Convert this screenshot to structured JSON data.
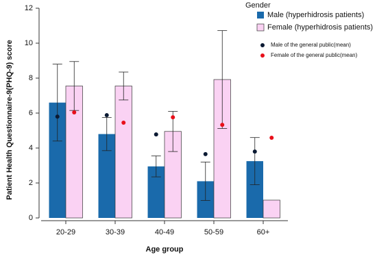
{
  "chart_data": {
    "type": "bar",
    "y_label": "Patient Health Questionnaire-9(PHQ-9) score",
    "x_label": "Age group",
    "legend_title": "Gender",
    "categories": [
      "20-29",
      "30-39",
      "40-49",
      "50-59",
      "60+"
    ],
    "ylim": [
      0,
      12
    ],
    "yticks": [
      0,
      2,
      4,
      6,
      8,
      10,
      12
    ],
    "series": [
      {
        "name": "Male (hyperhidrosis patients)",
        "kind": "bar",
        "color": "#1a6aab",
        "values": [
          6.6,
          4.8,
          2.95,
          2.1,
          3.25
        ],
        "errors": [
          2.2,
          0.95,
          0.6,
          1.1,
          1.35
        ]
      },
      {
        "name": "Female (hyperhidrosis patients)",
        "kind": "bar",
        "color": "#fad2f3",
        "values": [
          7.55,
          7.55,
          4.95,
          7.92,
          1.02
        ],
        "errors": [
          1.4,
          0.8,
          1.15,
          2.8,
          null
        ]
      },
      {
        "name": "Male of the general public(mean)",
        "kind": "point",
        "color": "#0b1a33",
        "values": [
          5.8,
          5.88,
          4.78,
          3.65,
          3.8
        ]
      },
      {
        "name": "Female of the general public(mean)",
        "kind": "point",
        "color": "#e8101a",
        "values": [
          6.04,
          5.45,
          5.76,
          5.33,
          4.59
        ]
      }
    ]
  }
}
